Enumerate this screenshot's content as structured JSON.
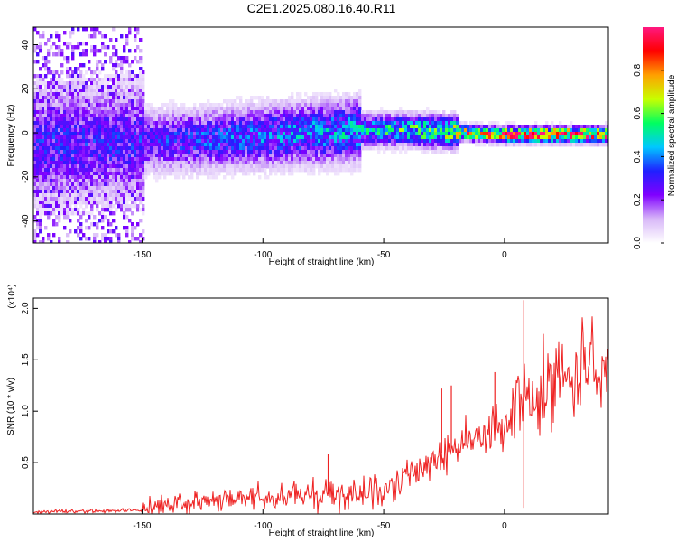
{
  "title": "C2E1.2025.080.16.40.R11",
  "chart_data": [
    {
      "type": "heatmap",
      "title": "C2E1.2025.080.16.40.R11",
      "xlabel": "Height of straight line (km)",
      "ylabel": "Frequency (Hz)",
      "xlim": [
        -195,
        43
      ],
      "ylim": [
        -50,
        48
      ],
      "xticks": [
        -150,
        -100,
        -50,
        0
      ],
      "yticks": [
        -40,
        -20,
        0,
        20,
        40
      ],
      "colorbar": {
        "label": "Normalized spectral amplitude",
        "range": [
          0,
          1
        ],
        "ticks": [
          0.0,
          0.2,
          0.4,
          0.6,
          0.8
        ],
        "colormap": [
          "#ffffff",
          "#d8b8f8",
          "#8000ff",
          "#2020ff",
          "#00c8ff",
          "#00ff60",
          "#c8ff00",
          "#ffa000",
          "#ff0000",
          "#ff1880"
        ]
      },
      "ridge": {
        "description_points_x": [
          -195,
          -150,
          -120,
          -90,
          -60,
          -40,
          -20,
          0,
          20,
          43
        ],
        "center_freq": [
          -5,
          -3,
          -2,
          0,
          2,
          2,
          1,
          0,
          0,
          0
        ],
        "peak_amplitude": [
          0.3,
          0.3,
          0.35,
          0.4,
          0.45,
          0.55,
          0.7,
          0.95,
          0.95,
          0.9
        ]
      }
    },
    {
      "type": "line",
      "xlabel": "Height of straight line (km)",
      "ylabel": "SNR (10 * v/v)",
      "y_multiplier": "(x10⁴)",
      "xlim": [
        -195,
        43
      ],
      "ylim": [
        0,
        2.1
      ],
      "xticks": [
        -150,
        -100,
        -50,
        0
      ],
      "yticks": [
        0.5,
        1.0,
        1.5,
        2.0
      ],
      "ytick_labels": [
        "0.5",
        "1.0",
        "1.5",
        "2.0"
      ],
      "series": [
        {
          "color": "#ee2222",
          "x": [
            -195,
            -180,
            -160,
            -150,
            -140,
            -130,
            -120,
            -100,
            -80,
            -60,
            -50,
            -45,
            -40,
            -35,
            -30,
            -25,
            -20,
            -15,
            -10,
            -5,
            0,
            5,
            8,
            10,
            15,
            20,
            25,
            30,
            35,
            43
          ],
          "y": [
            0.02,
            0.03,
            0.03,
            0.04,
            0.08,
            0.12,
            0.13,
            0.16,
            0.19,
            0.2,
            0.22,
            0.28,
            0.35,
            0.45,
            0.55,
            0.6,
            0.65,
            0.72,
            0.75,
            0.8,
            0.9,
            1.0,
            1.2,
            1.05,
            1.15,
            1.3,
            1.35,
            1.4,
            1.43,
            1.45
          ]
        }
      ],
      "spikes": [
        {
          "x": -73,
          "y": 0.58
        },
        {
          "x": -26,
          "y": 1.22
        },
        {
          "x": -22,
          "y": 1.25
        },
        {
          "x": -4,
          "y": 1.38
        },
        {
          "x": 8,
          "y": 2.08
        },
        {
          "x": 8,
          "y": 0.06
        }
      ]
    }
  ]
}
